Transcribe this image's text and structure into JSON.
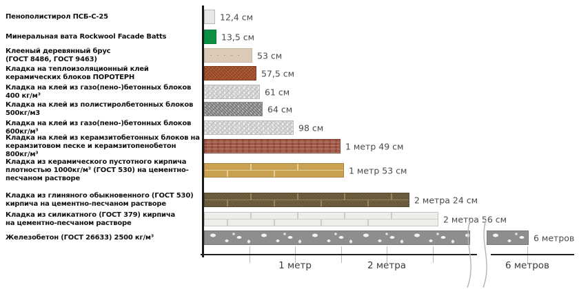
{
  "chart_data": {
    "type": "bar",
    "orientation": "horizontal",
    "unit": "см",
    "grid": false,
    "legend": false,
    "axis_break_before_last_value": true,
    "bars": [
      {
        "category": "Пенополистирол ПСБ-С-25",
        "value_cm": 12.4,
        "value_label": "12,4 см",
        "material": "foam",
        "color": "#e7e7e7"
      },
      {
        "category": "Минеральная вата Rockwool Facade Batts",
        "value_cm": 13.5,
        "value_label": "13,5 см",
        "material": "mineral-wool",
        "color": "#0c9144"
      },
      {
        "category": "Клееный деревянный брус\n(ГОСТ 8486, ГОСТ 9463)",
        "value_cm": 53,
        "value_label": "53 см",
        "material": "glued-timber",
        "color": "#dbcab8"
      },
      {
        "category": "Кладка на теплоизоляционный клей\nкерамических блоков ПОРОТЕРН",
        "value_cm": 57.5,
        "value_label": "57,5 см",
        "material": "porotherm",
        "color": "#a5512c"
      },
      {
        "category": "Кладка на клей из газо(пено-)бетонных блоков\n400 кг/м³",
        "value_cm": 61,
        "value_label": "61 см",
        "material": "aerated-400",
        "color": "#dcdcdc"
      },
      {
        "category": "Кладка на клей из полистиролбетонных блоков\n500кг/м3",
        "value_cm": 64,
        "value_label": "64 см",
        "material": "polystyrene-500",
        "color": "#a7a7a7"
      },
      {
        "category": "Кладка на клей из газо(пено-)бетонных блоков\n600кг/м³",
        "value_cm": 98,
        "value_label": "98 см",
        "material": "aerated-600",
        "color": "#dcdcdc"
      },
      {
        "category": "Кладка на клей из керамзитобетонных блоков на\nкерамзитовом песке и керамзитопенобетон\n800кг/м³",
        "value_cm": 149,
        "value_label": "1 метр 49 см",
        "material": "expanded-clay-800",
        "color": "#a35a49"
      },
      {
        "category": "Кладка из керамического пустотного кирпича\nплотностью 1000кг/м³ (ГОСТ 530) на цементно-\nпесчаном растворе",
        "value_cm": 153,
        "value_label": "1 метр 53 см",
        "material": "ceramic-brick-1000",
        "color": "#c8a252"
      },
      {
        "category": "Кладка из глиняного обыкновенного (ГОСТ 530)\nкирпича на цементно-песчаном растворе",
        "value_cm": 224,
        "value_label": "2 метра 24 см",
        "material": "clay-brick",
        "color": "#6f603f"
      },
      {
        "category": "Кладка из силикатного (ГОСТ 379) кирпича\nна цементно-песчаном растворе",
        "value_cm": 256,
        "value_label": "2 метра 56 см",
        "material": "silicate-brick",
        "color": "#ededea"
      },
      {
        "category": "Железобетон (ГОСТ 26633) 2500 кг/м³",
        "value_cm": 600,
        "value_label": "6 метров",
        "material": "reinforced-concrete",
        "color": "#8e8e8e",
        "axis_break": true
      }
    ],
    "x_axis": {
      "minor_ticks_m": [
        0.5,
        1,
        1.5,
        2,
        2.5
      ],
      "labeled_ticks_m": [
        1,
        2,
        6
      ],
      "tick_labels": [
        "1 метр",
        "2 метра",
        "6 метров"
      ]
    }
  }
}
